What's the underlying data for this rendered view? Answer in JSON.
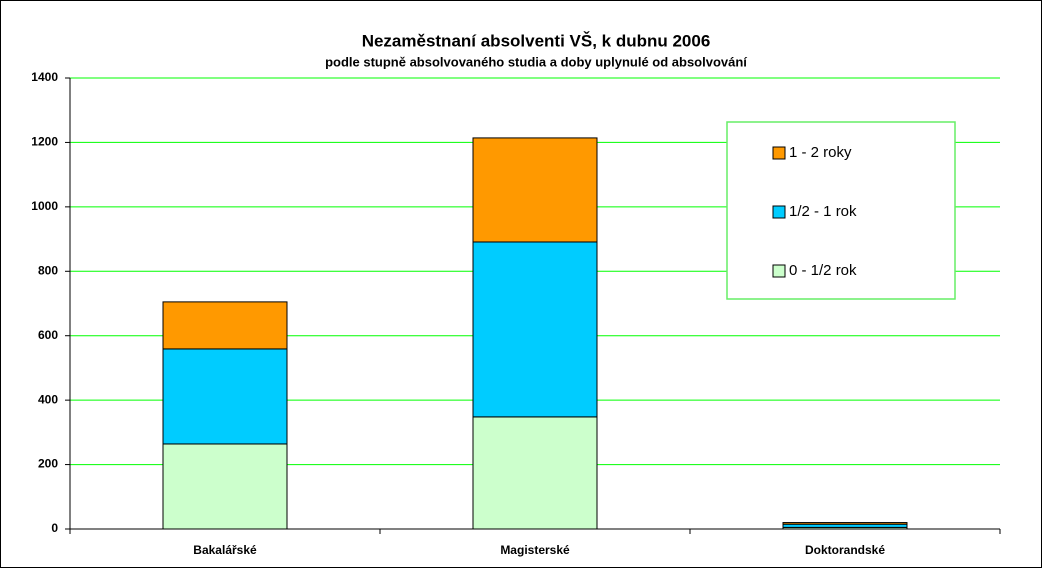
{
  "chart_data": {
    "type": "bar",
    "stacked": true,
    "title": "Nezaměstnaní absolventi VŠ, k dubnu 2006",
    "subtitle": "podle stupně absolvovaného studia a doby uplynulé od absolvování",
    "categories": [
      "Bakalářské",
      "Magisterské",
      "Doktorandské"
    ],
    "series": [
      {
        "name": "0 - 1/2 rok",
        "color": "#ccffcc",
        "values": [
          264,
          348,
          5
        ]
      },
      {
        "name": "1/2 - 1 rok",
        "color": "#00ccff",
        "values": [
          295,
          543,
          10
        ]
      },
      {
        "name": "1 - 2 roky",
        "color": "#ff9900",
        "values": [
          146,
          323,
          5
        ]
      }
    ],
    "ylim": [
      0,
      1400
    ],
    "yticks": [
      0,
      200,
      400,
      600,
      800,
      1000,
      1200,
      1400
    ],
    "grid": true,
    "legend": "top-right"
  }
}
